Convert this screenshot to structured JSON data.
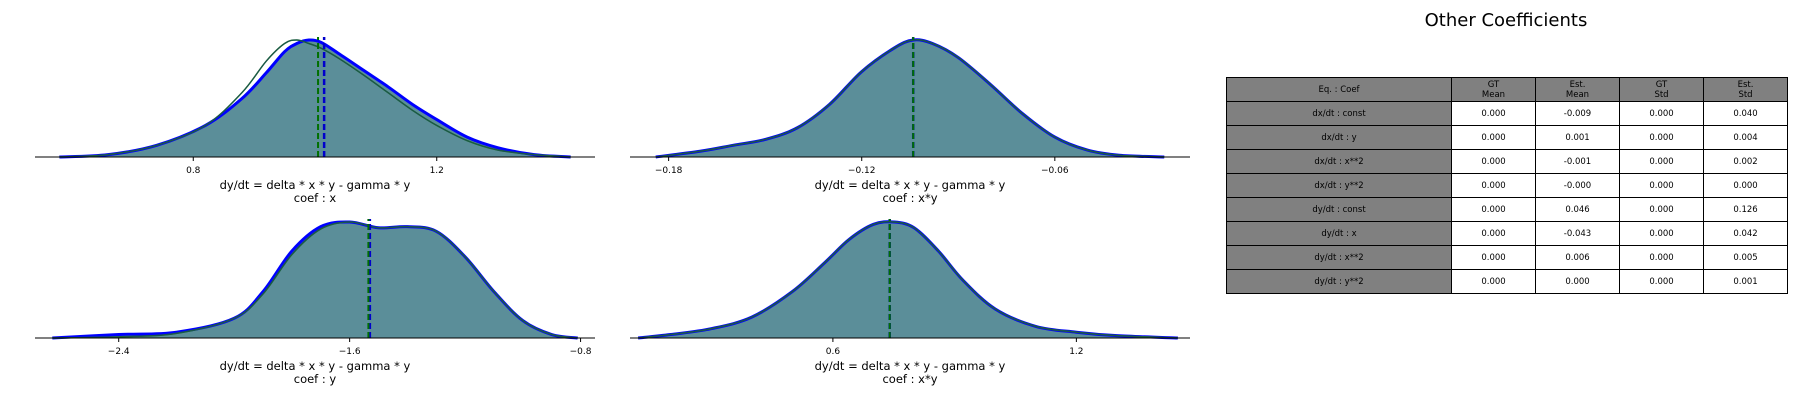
{
  "colors": {
    "fill": "#5b8e99",
    "est_line": "#0000ff",
    "gt_line": "#1c7c1c",
    "dark_line": "#1b3a6b",
    "gt_mean": "#007000",
    "est_mean": "#0000cc",
    "header_bg": "#808080"
  },
  "chart_data": [
    {
      "type": "area",
      "caption": "dy/dt = delta * x * y - gamma * y",
      "coef_label": "coef : x",
      "x": [
        0.58,
        0.66,
        0.74,
        0.82,
        0.88,
        0.92,
        0.95,
        0.97,
        0.99,
        1.01,
        1.04,
        1.08,
        1.12,
        1.16,
        1.2,
        1.25,
        1.3,
        1.36,
        1.42
      ],
      "series": [
        {
          "values": [
            0.0,
            0.02,
            0.1,
            0.27,
            0.5,
            0.72,
            0.9,
            0.97,
            1.0,
            0.98,
            0.88,
            0.74,
            0.6,
            0.45,
            0.32,
            0.17,
            0.08,
            0.02,
            0.0
          ]
        },
        {
          "values": [
            0.0,
            0.02,
            0.1,
            0.27,
            0.55,
            0.82,
            0.97,
            1.0,
            0.97,
            0.93,
            0.84,
            0.7,
            0.55,
            0.4,
            0.27,
            0.14,
            0.06,
            0.02,
            0.0
          ]
        }
      ],
      "gt_mean": 1.005,
      "est_mean": 1.015,
      "xticks": [
        0.8,
        1.2
      ],
      "xtick_labels": [
        "0.8",
        "1.2"
      ],
      "xlim": [
        0.54,
        1.46
      ]
    },
    {
      "type": "area",
      "caption": "dy/dt = delta * x * y - gamma * y",
      "coef_label": "coef : x*y",
      "x": [
        -0.184,
        -0.17,
        -0.16,
        -0.15,
        -0.14,
        -0.13,
        -0.12,
        -0.11,
        -0.104,
        -0.098,
        -0.09,
        -0.08,
        -0.07,
        -0.06,
        -0.05,
        -0.04,
        -0.026
      ],
      "series": [
        {
          "values": [
            0.0,
            0.05,
            0.1,
            0.15,
            0.25,
            0.45,
            0.73,
            0.93,
            1.0,
            0.97,
            0.85,
            0.62,
            0.37,
            0.17,
            0.06,
            0.015,
            0.0
          ]
        },
        {
          "values": [
            0.0,
            0.05,
            0.1,
            0.15,
            0.25,
            0.45,
            0.73,
            0.93,
            1.0,
            0.97,
            0.85,
            0.62,
            0.37,
            0.17,
            0.06,
            0.015,
            0.0
          ]
        }
      ],
      "gt_mean": -0.104,
      "est_mean": -0.104,
      "xticks": [
        -0.18,
        -0.12,
        -0.06
      ],
      "xtick_labels": [
        "−0.18",
        "−0.12",
        "−0.06"
      ],
      "xlim": [
        -0.192,
        -0.018
      ]
    },
    {
      "type": "area",
      "caption": "dy/dt = delta * x * y - gamma * y",
      "coef_label": "coef : y",
      "x": [
        -2.63,
        -2.4,
        -2.2,
        -2.0,
        -1.9,
        -1.8,
        -1.7,
        -1.6,
        -1.5,
        -1.4,
        -1.3,
        -1.2,
        -1.1,
        -1.0,
        -0.9,
        -0.81
      ],
      "series": [
        {
          "values": [
            0.0,
            0.03,
            0.05,
            0.17,
            0.4,
            0.75,
            0.96,
            1.0,
            0.95,
            0.96,
            0.92,
            0.7,
            0.4,
            0.15,
            0.03,
            0.0
          ]
        },
        {
          "values": [
            0.0,
            0.01,
            0.04,
            0.17,
            0.38,
            0.72,
            0.94,
            1.0,
            0.95,
            0.96,
            0.92,
            0.7,
            0.4,
            0.15,
            0.03,
            0.0
          ]
        }
      ],
      "gt_mean": -1.535,
      "est_mean": -1.53,
      "xticks": [
        -2.4,
        -1.6,
        -0.8
      ],
      "xtick_labels": [
        "−2.4",
        "−1.6",
        "−0.8"
      ],
      "xlim": [
        -2.69,
        -0.75
      ]
    },
    {
      "type": "area",
      "caption": "dy/dt = delta * x * y - gamma * y",
      "coef_label": "coef : x*y",
      "x": [
        0.12,
        0.2,
        0.3,
        0.4,
        0.5,
        0.58,
        0.64,
        0.7,
        0.75,
        0.8,
        0.86,
        0.92,
        1.0,
        1.1,
        1.2,
        1.3,
        1.45
      ],
      "series": [
        {
          "values": [
            0.0,
            0.03,
            0.08,
            0.18,
            0.4,
            0.65,
            0.85,
            0.98,
            1.0,
            0.95,
            0.75,
            0.5,
            0.25,
            0.1,
            0.05,
            0.02,
            0.0
          ]
        },
        {
          "values": [
            0.0,
            0.03,
            0.08,
            0.18,
            0.4,
            0.65,
            0.85,
            0.98,
            1.0,
            0.95,
            0.75,
            0.5,
            0.25,
            0.1,
            0.05,
            0.02,
            0.0
          ]
        }
      ],
      "gt_mean": 0.74,
      "est_mean": 0.74,
      "xticks": [
        0.6,
        1.2
      ],
      "xtick_labels": [
        "0.6",
        "1.2"
      ],
      "xlim": [
        0.1,
        1.48
      ]
    }
  ],
  "table": {
    "title": "Other Coefficients",
    "headers": [
      [
        "Eq. : Coef"
      ],
      [
        "GT",
        "Mean"
      ],
      [
        "Est.",
        "Mean"
      ],
      [
        "GT",
        "Std"
      ],
      [
        "Est.",
        "Std"
      ]
    ],
    "rows": [
      [
        "dx/dt  : const",
        "0.000",
        "-0.009",
        "0.000",
        "0.040"
      ],
      [
        "dx/dt  : y",
        "0.000",
        "0.001",
        "0.000",
        "0.004"
      ],
      [
        "dx/dt  : x**2",
        "0.000",
        "-0.001",
        "0.000",
        "0.002"
      ],
      [
        "dx/dt  : y**2",
        "0.000",
        "-0.000",
        "0.000",
        "0.000"
      ],
      [
        "dy/dt  : const",
        "0.000",
        "0.046",
        "0.000",
        "0.126"
      ],
      [
        "dy/dt  : x",
        "0.000",
        "-0.043",
        "0.000",
        "0.042"
      ],
      [
        "dy/dt  : x**2",
        "0.000",
        "0.006",
        "0.000",
        "0.005"
      ],
      [
        "dy/dt  : y**2",
        "0.000",
        "0.000",
        "0.000",
        "0.001"
      ]
    ]
  }
}
